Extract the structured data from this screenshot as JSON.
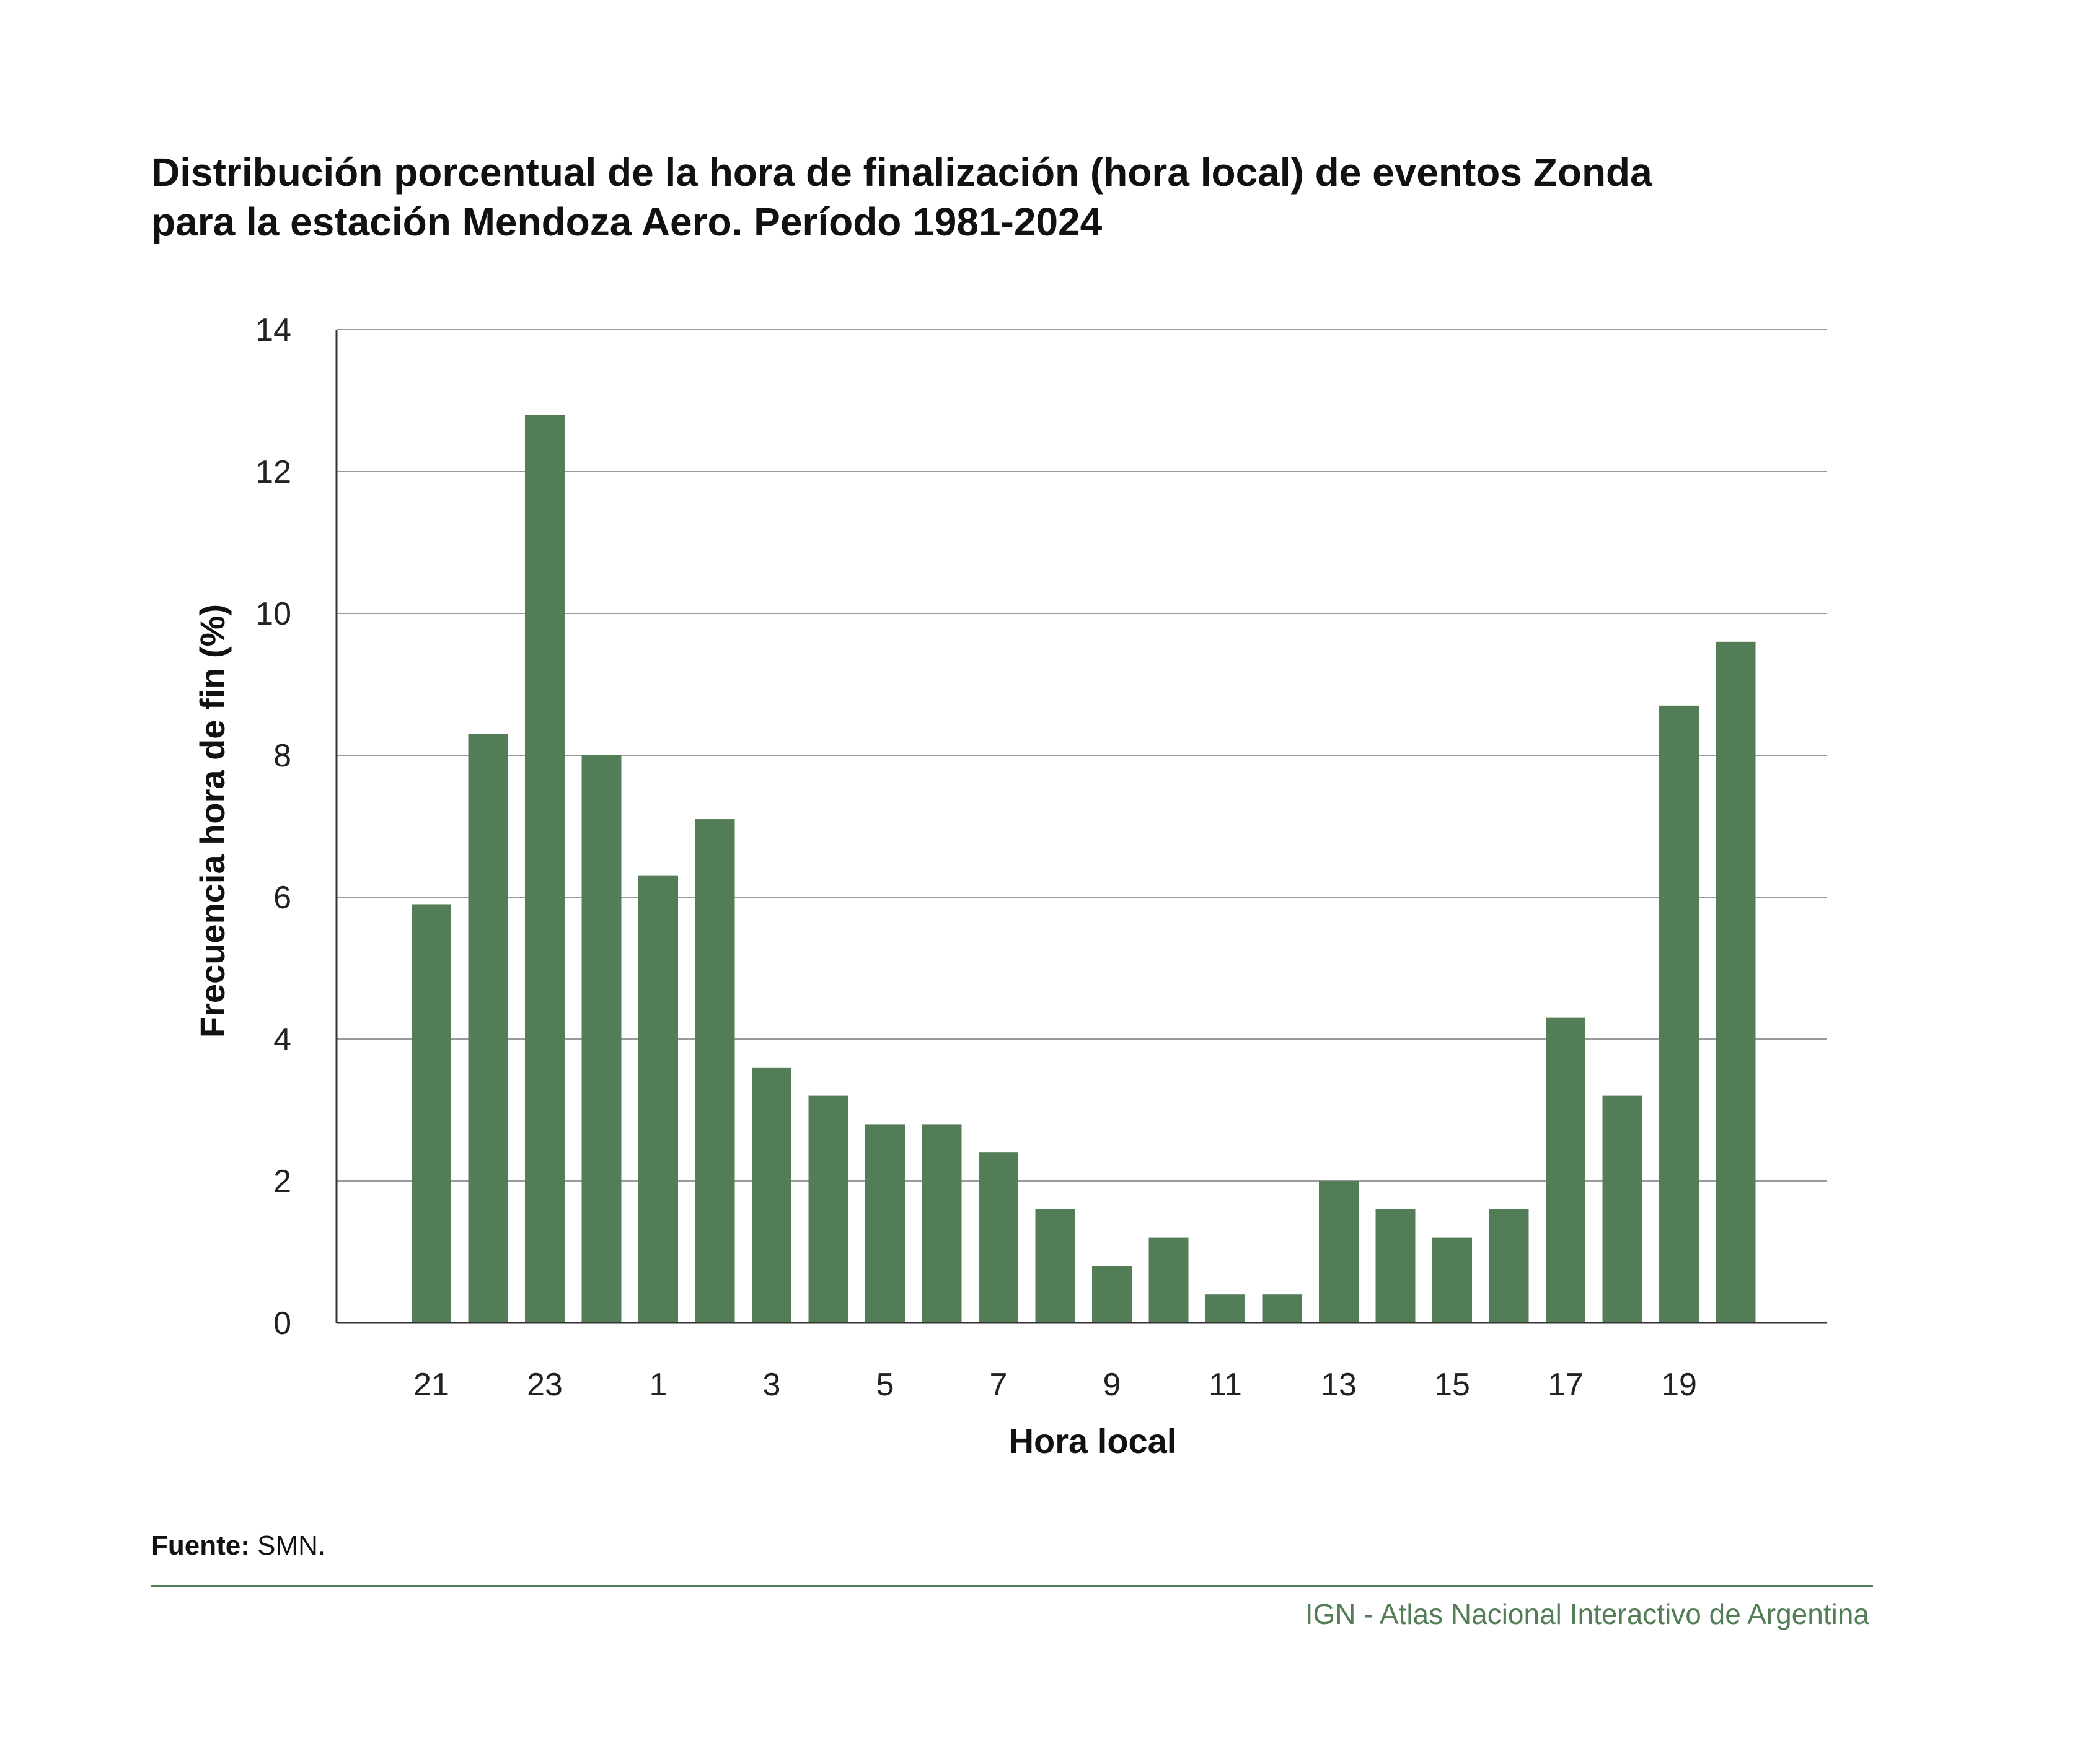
{
  "title": {
    "line1": "Distribución porcentual de la hora de finalización (hora local) de eventos Zonda",
    "line2": "para la estación Mendoza Aero. Período 1981-2024"
  },
  "chart_data": {
    "type": "bar",
    "title": "Distribución porcentual de la hora de finalización (hora local) de eventos Zonda para la estación Mendoza Aero. Período 1981-2024",
    "xlabel": "Hora local",
    "ylabel": "Frecuencia hora de fin (%)",
    "ylim": [
      0,
      14
    ],
    "yticks": [
      0,
      2,
      4,
      6,
      8,
      10,
      12,
      14
    ],
    "grid": true,
    "bar_color": "#537d57",
    "categories": [
      "21",
      "22",
      "23",
      "0",
      "1",
      "2",
      "3",
      "4",
      "5",
      "6",
      "7",
      "8",
      "9",
      "10",
      "11",
      "12",
      "13",
      "14",
      "15",
      "16",
      "17",
      "18",
      "19",
      "20"
    ],
    "tick_labels_shown": [
      "21",
      "23",
      "1",
      "3",
      "5",
      "7",
      "9",
      "11",
      "13",
      "15",
      "17",
      "19"
    ],
    "values": [
      5.9,
      8.3,
      12.8,
      8.0,
      6.3,
      7.1,
      3.6,
      3.2,
      2.8,
      2.8,
      2.4,
      1.6,
      0.8,
      1.2,
      0.4,
      0.4,
      2.0,
      1.6,
      1.2,
      1.6,
      4.3,
      3.2,
      8.7,
      9.6
    ]
  },
  "source": {
    "label": "Fuente:",
    "value": "SMN."
  },
  "credit": "IGN - Atlas Nacional Interactivo de Argentina",
  "colors": {
    "accent": "#537d57",
    "grid": "#9a9a9a",
    "axis": "#333333"
  }
}
